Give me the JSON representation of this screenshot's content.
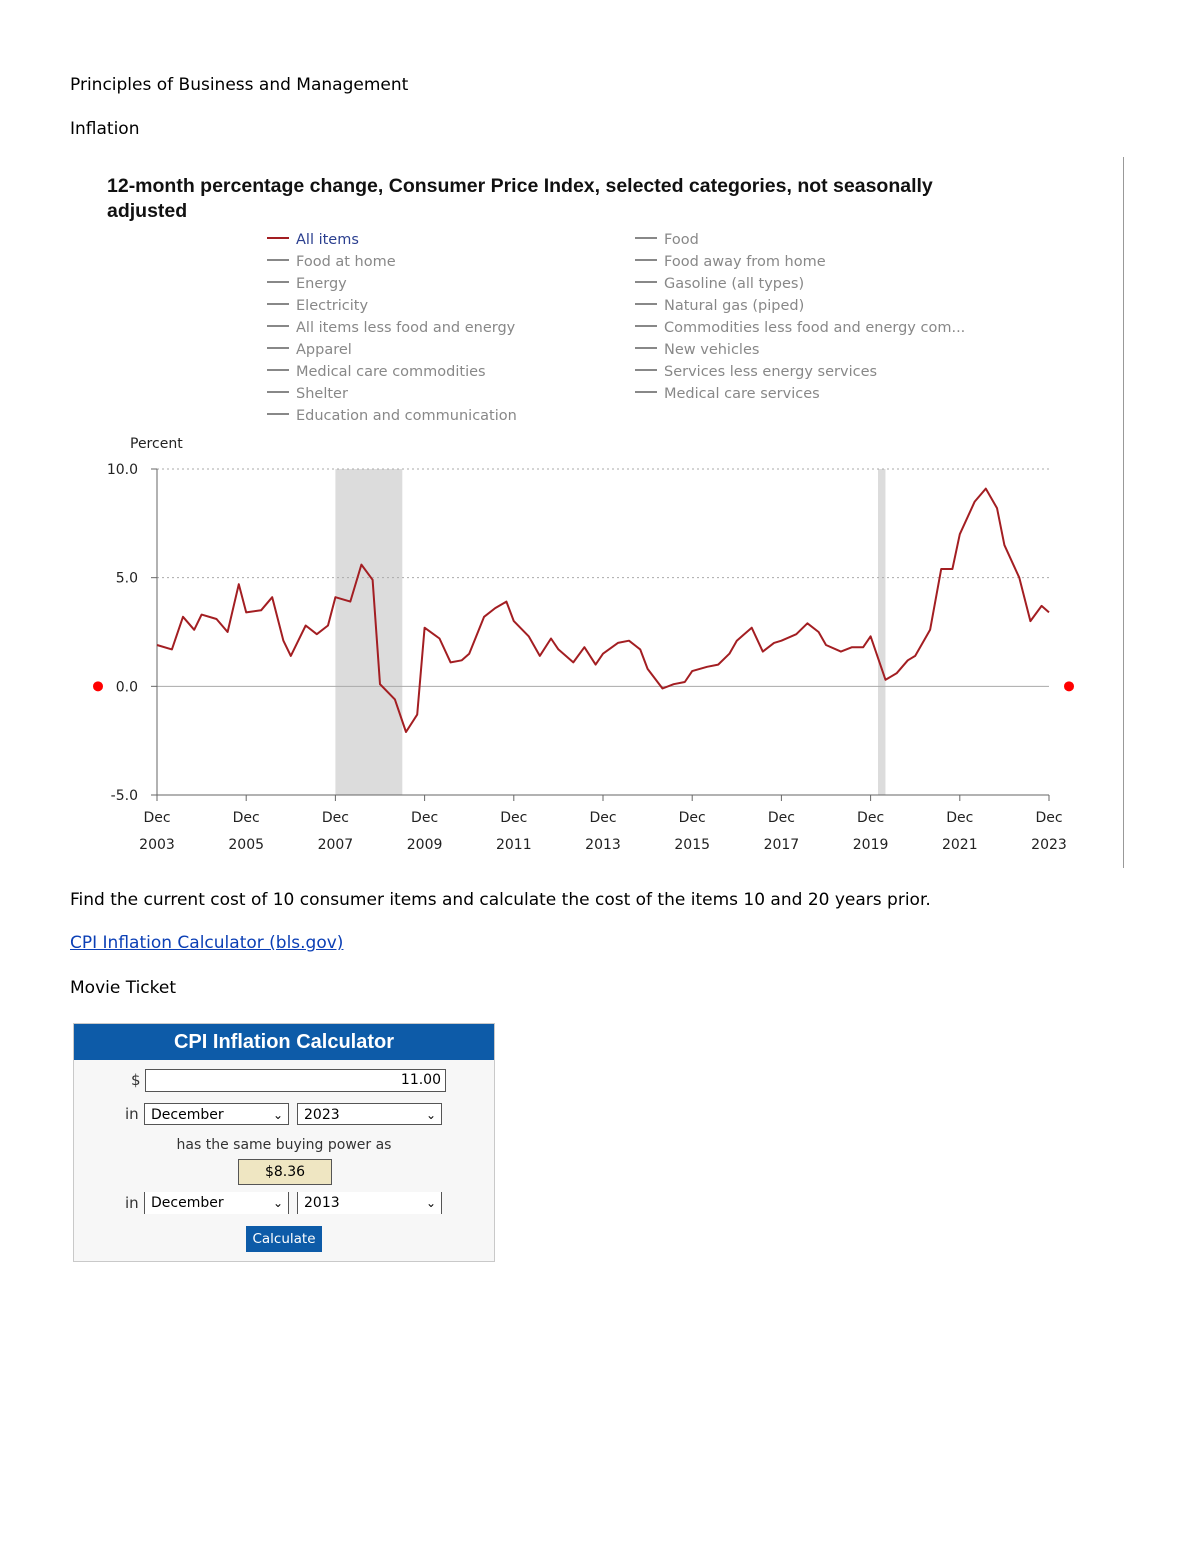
{
  "document": {
    "course_title": "Principles of Business and Management",
    "topic_title": "Inflation",
    "instruction": "Find the current cost of 10 consumer items and calculate the cost of the items 10 and 20 years prior.",
    "link_text": "CPI Inflation Calculator (bls.gov)",
    "item_label": "Movie Ticket"
  },
  "chart_data": {
    "type": "line",
    "title": "12-month percentage change, Consumer Price Index, selected categories, not seasonally adjusted",
    "ylabel": "Percent",
    "xlabel": "",
    "ylim": [
      -5,
      10
    ],
    "xlim": [
      2003.917,
      2023.917
    ],
    "y_ticks": [
      "-5.0",
      "0.0",
      "5.0",
      "10.0"
    ],
    "x_ticks": [
      {
        "line1": "Dec",
        "line2": "2003",
        "year": 2003.917
      },
      {
        "line1": "Dec",
        "line2": "2005",
        "year": 2005.917
      },
      {
        "line1": "Dec",
        "line2": "2007",
        "year": 2007.917
      },
      {
        "line1": "Dec",
        "line2": "2009",
        "year": 2009.917
      },
      {
        "line1": "Dec",
        "line2": "2011",
        "year": 2011.917
      },
      {
        "line1": "Dec",
        "line2": "2013",
        "year": 2013.917
      },
      {
        "line1": "Dec",
        "line2": "2015",
        "year": 2015.917
      },
      {
        "line1": "Dec",
        "line2": "2017",
        "year": 2017.917
      },
      {
        "line1": "Dec",
        "line2": "2019",
        "year": 2019.917
      },
      {
        "line1": "Dec",
        "line2": "2021",
        "year": 2021.917
      },
      {
        "line1": "Dec",
        "line2": "2023",
        "year": 2023.917
      }
    ],
    "recessions": [
      [
        2007.917,
        2009.417
      ],
      [
        2020.083,
        2020.25
      ]
    ],
    "zero_marker_color": "#ff0000",
    "series_color": "#a31e22",
    "legend": [
      {
        "label": "All items",
        "active": true
      },
      {
        "label": "Food at home",
        "active": false
      },
      {
        "label": "Energy",
        "active": false
      },
      {
        "label": "Electricity",
        "active": false
      },
      {
        "label": "All items less food and energy",
        "active": false
      },
      {
        "label": "Apparel",
        "active": false
      },
      {
        "label": "Medical care commodities",
        "active": false
      },
      {
        "label": "Shelter",
        "active": false
      },
      {
        "label": "Education and communication",
        "active": false
      },
      {
        "label": "Food",
        "active": false
      },
      {
        "label": "Food away from home",
        "active": false
      },
      {
        "label": "Gasoline (all types)",
        "active": false
      },
      {
        "label": "Natural gas (piped)",
        "active": false
      },
      {
        "label": "Commodities less food and energy com...",
        "active": false
      },
      {
        "label": "New vehicles",
        "active": false
      },
      {
        "label": "Services less energy services",
        "active": false
      },
      {
        "label": "Medical care services",
        "active": false
      }
    ],
    "series": [
      {
        "name": "All items",
        "points": [
          [
            2003.917,
            1.9
          ],
          [
            2004.25,
            1.7
          ],
          [
            2004.5,
            3.2
          ],
          [
            2004.75,
            2.6
          ],
          [
            2004.917,
            3.3
          ],
          [
            2005.25,
            3.1
          ],
          [
            2005.5,
            2.5
          ],
          [
            2005.75,
            4.7
          ],
          [
            2005.917,
            3.4
          ],
          [
            2006.25,
            3.5
          ],
          [
            2006.5,
            4.1
          ],
          [
            2006.75,
            2.1
          ],
          [
            2006.917,
            1.4
          ],
          [
            2007.25,
            2.8
          ],
          [
            2007.5,
            2.4
          ],
          [
            2007.75,
            2.8
          ],
          [
            2007.917,
            4.1
          ],
          [
            2008.25,
            3.9
          ],
          [
            2008.5,
            5.6
          ],
          [
            2008.75,
            4.9
          ],
          [
            2008.917,
            0.1
          ],
          [
            2009.25,
            -0.6
          ],
          [
            2009.5,
            -2.1
          ],
          [
            2009.75,
            -1.3
          ],
          [
            2009.917,
            2.7
          ],
          [
            2010.25,
            2.2
          ],
          [
            2010.5,
            1.1
          ],
          [
            2010.75,
            1.2
          ],
          [
            2010.917,
            1.5
          ],
          [
            2011.25,
            3.2
          ],
          [
            2011.5,
            3.6
          ],
          [
            2011.75,
            3.9
          ],
          [
            2011.917,
            3.0
          ],
          [
            2012.25,
            2.3
          ],
          [
            2012.5,
            1.4
          ],
          [
            2012.75,
            2.2
          ],
          [
            2012.917,
            1.7
          ],
          [
            2013.25,
            1.1
          ],
          [
            2013.5,
            1.8
          ],
          [
            2013.75,
            1.0
          ],
          [
            2013.917,
            1.5
          ],
          [
            2014.25,
            2.0
          ],
          [
            2014.5,
            2.1
          ],
          [
            2014.75,
            1.7
          ],
          [
            2014.917,
            0.8
          ],
          [
            2015.25,
            -0.1
          ],
          [
            2015.5,
            0.1
          ],
          [
            2015.75,
            0.2
          ],
          [
            2015.917,
            0.7
          ],
          [
            2016.25,
            0.9
          ],
          [
            2016.5,
            1.0
          ],
          [
            2016.75,
            1.5
          ],
          [
            2016.917,
            2.1
          ],
          [
            2017.25,
            2.7
          ],
          [
            2017.5,
            1.6
          ],
          [
            2017.75,
            2.0
          ],
          [
            2017.917,
            2.1
          ],
          [
            2018.25,
            2.4
          ],
          [
            2018.5,
            2.9
          ],
          [
            2018.75,
            2.5
          ],
          [
            2018.917,
            1.9
          ],
          [
            2019.25,
            1.6
          ],
          [
            2019.5,
            1.8
          ],
          [
            2019.75,
            1.8
          ],
          [
            2019.917,
            2.3
          ],
          [
            2020.25,
            0.3
          ],
          [
            2020.5,
            0.6
          ],
          [
            2020.75,
            1.2
          ],
          [
            2020.917,
            1.4
          ],
          [
            2021.25,
            2.6
          ],
          [
            2021.5,
            5.4
          ],
          [
            2021.75,
            5.4
          ],
          [
            2021.917,
            7.0
          ],
          [
            2022.25,
            8.5
          ],
          [
            2022.5,
            9.1
          ],
          [
            2022.75,
            8.2
          ],
          [
            2022.917,
            6.5
          ],
          [
            2023.25,
            5.0
          ],
          [
            2023.5,
            3.0
          ],
          [
            2023.75,
            3.7
          ],
          [
            2023.917,
            3.4
          ]
        ]
      }
    ]
  },
  "calculator": {
    "title": "CPI Inflation Calculator",
    "currency_label": "$",
    "amount": "11.00",
    "in_label": "in",
    "from_month": "December",
    "from_year": "2023",
    "same_power_text": "has the same buying power as",
    "result": "$8.36",
    "to_month": "December",
    "to_year": "2013",
    "button_label": "Calculate",
    "dropdown_glyph": "⌄"
  }
}
